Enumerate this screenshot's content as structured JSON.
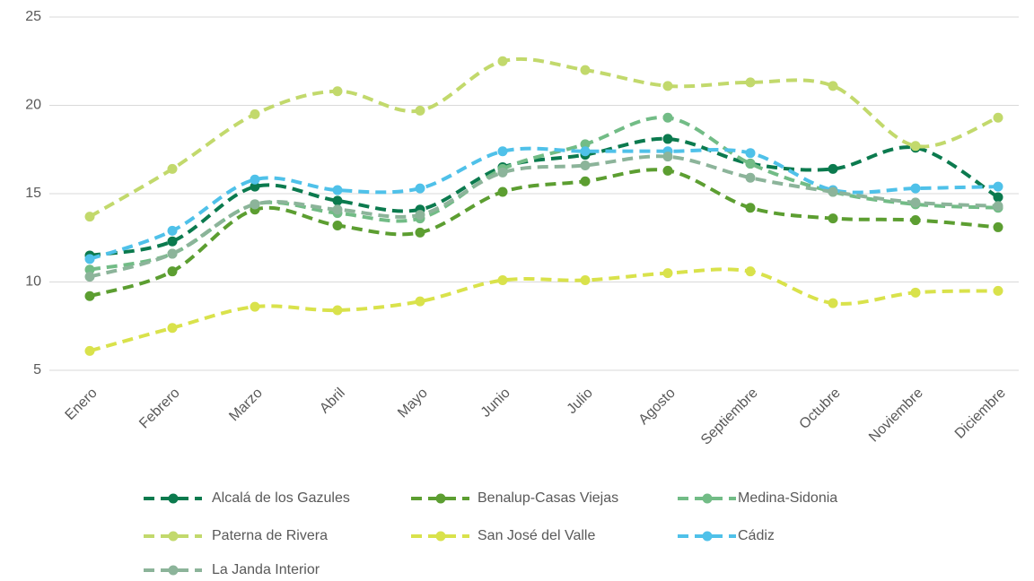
{
  "chart_data": {
    "type": "line",
    "categories": [
      "Enero",
      "Febrero",
      "Marzo",
      "Abril",
      "Mayo",
      "Junio",
      "Julio",
      "Agosto",
      "Septiembre",
      "Octubre",
      "Noviembre",
      "Diciembre"
    ],
    "series": [
      {
        "name": "Alcalá de los Gazules",
        "color": "#0b7a4e",
        "values": [
          11.5,
          12.3,
          15.4,
          14.6,
          14.1,
          16.5,
          17.2,
          18.1,
          16.7,
          16.4,
          17.6,
          14.8
        ]
      },
      {
        "name": "Benalup-Casas Viejas",
        "color": "#5c9e31",
        "values": [
          9.2,
          10.6,
          14.1,
          13.2,
          12.8,
          15.1,
          15.7,
          16.3,
          14.2,
          13.6,
          13.5,
          13.1
        ]
      },
      {
        "name": "Medina-Sidonia",
        "color": "#72bc86",
        "values": [
          10.7,
          11.6,
          14.4,
          13.9,
          13.6,
          16.4,
          17.8,
          19.3,
          16.7,
          15.1,
          14.4,
          14.2
        ]
      },
      {
        "name": "Paterna de Rivera",
        "color": "#c2d96c",
        "values": [
          13.7,
          16.4,
          19.5,
          20.8,
          19.7,
          22.5,
          22.0,
          21.1,
          21.3,
          21.1,
          17.7,
          19.3
        ]
      },
      {
        "name": "San José del Valle",
        "color": "#d9e24b",
        "values": [
          6.1,
          7.4,
          8.6,
          8.4,
          8.9,
          10.1,
          10.1,
          10.5,
          10.6,
          8.8,
          9.4,
          9.5
        ]
      },
      {
        "name": "Cádiz",
        "color": "#4fc1e9",
        "values": [
          11.3,
          12.9,
          15.8,
          15.2,
          15.3,
          17.4,
          17.4,
          17.4,
          17.3,
          15.2,
          15.3,
          15.4
        ]
      },
      {
        "name": "La Janda Interior",
        "color": "#8cb49a",
        "values": [
          10.3,
          11.6,
          14.4,
          14.1,
          13.8,
          16.2,
          16.6,
          17.1,
          15.9,
          15.1,
          14.5,
          14.3
        ]
      }
    ],
    "ylim": [
      5,
      25
    ],
    "yticks": [
      5,
      10,
      15,
      20,
      25
    ],
    "grid": true,
    "legend": "bottom"
  }
}
